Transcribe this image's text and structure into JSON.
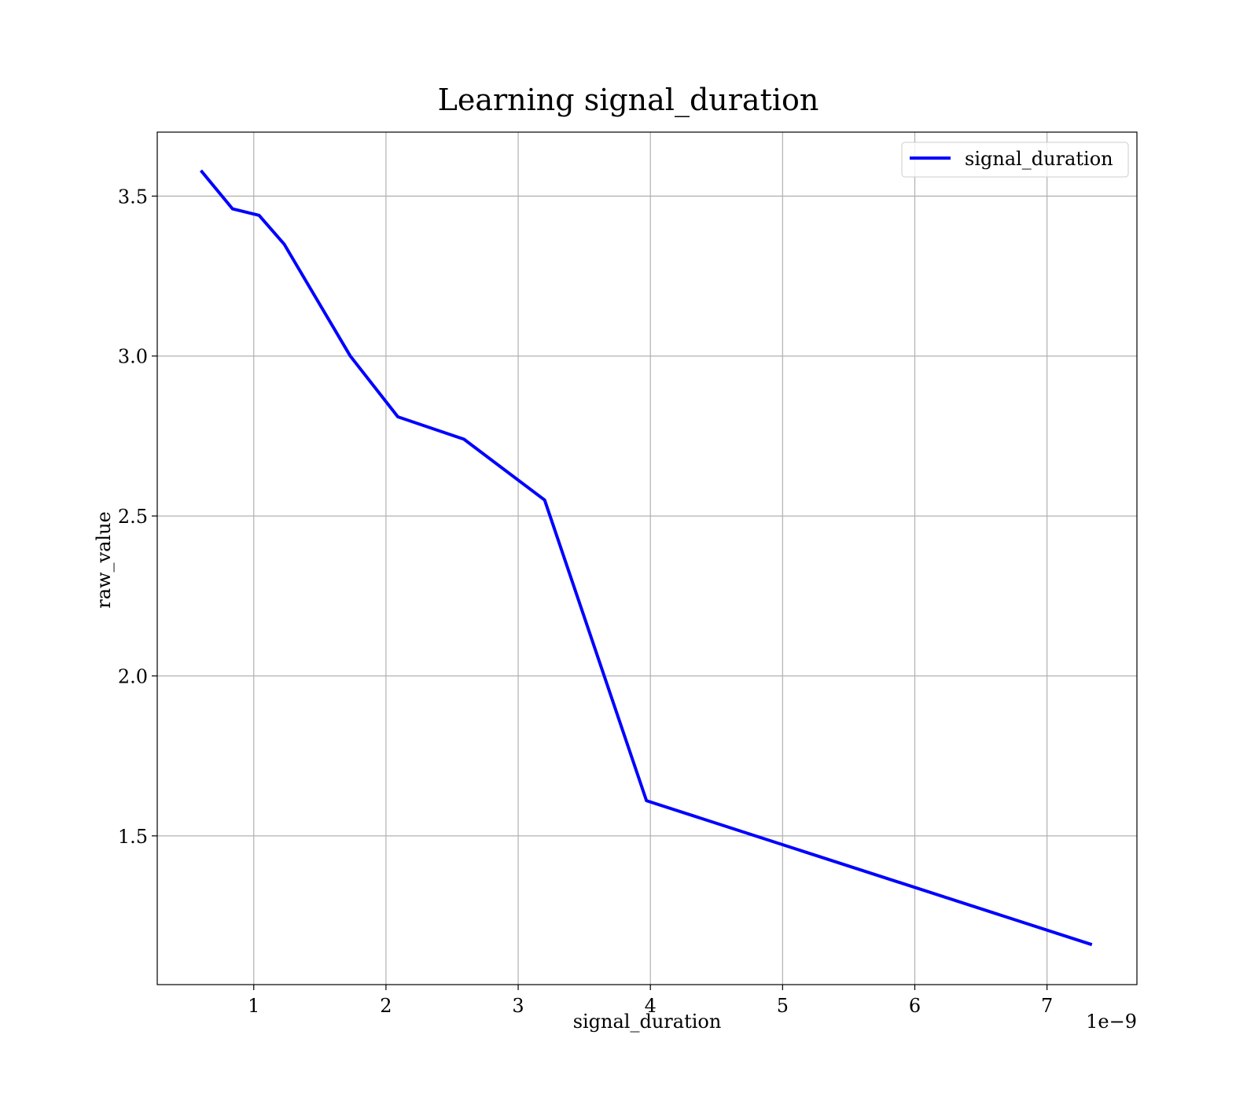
{
  "chart_data": {
    "type": "line",
    "title": "Learning signal_duration",
    "xlabel": "signal_duration",
    "ylabel": "raw_value",
    "x_offset_label": "1e−9",
    "xlim": [
      0.27,
      7.68
    ],
    "ylim": [
      1.035,
      3.7
    ],
    "xticks": [
      1,
      2,
      3,
      4,
      5,
      6,
      7
    ],
    "xtick_labels": [
      "1",
      "2",
      "3",
      "4",
      "5",
      "6",
      "7"
    ],
    "yticks": [
      1.5,
      2.0,
      2.5,
      3.0,
      3.5
    ],
    "ytick_labels": [
      "1.5",
      "2.0",
      "2.5",
      "3.0",
      "3.5"
    ],
    "grid": true,
    "legend_position": "top-right",
    "series": [
      {
        "name": "signal_duration",
        "color": "#0000ff",
        "x": [
          0.6,
          0.84,
          1.04,
          1.23,
          1.73,
          2.09,
          2.59,
          3.2,
          3.97,
          7.34
        ],
        "y": [
          3.58,
          3.46,
          3.44,
          3.35,
          3.0,
          2.81,
          2.74,
          2.55,
          1.61,
          1.16
        ]
      }
    ]
  }
}
